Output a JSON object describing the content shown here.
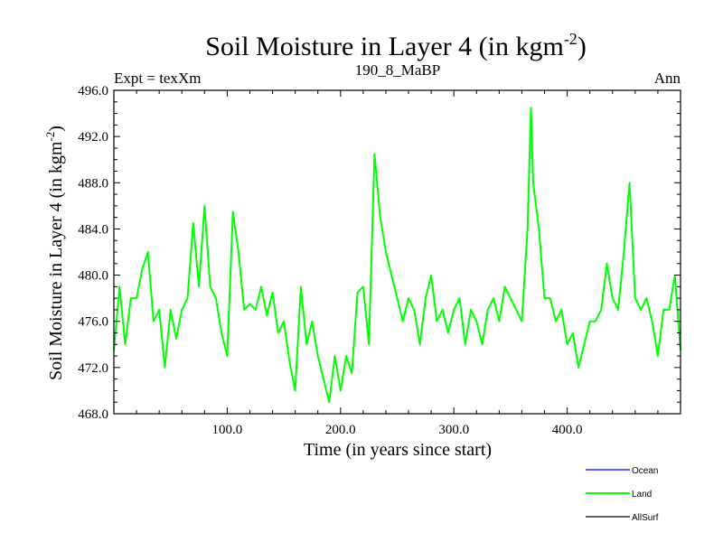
{
  "chart_data": {
    "type": "line",
    "title": "Soil Moisture in Layer 4 (in kgm",
    "title_sup": "-2",
    "title_close": ")",
    "subtitle_left": "Expt = texXm",
    "subtitle_center": "190_8_MaBP",
    "subtitle_right": "Ann",
    "xlabel": "Time (in years since start)",
    "ylabel": "Soil Moisture in Layer 4 (in kgm",
    "ylabel_sup": "-2",
    "ylabel_close": ")",
    "xlim": [
      0,
      500
    ],
    "ylim": [
      468,
      496
    ],
    "xticks": [
      100,
      200,
      300,
      400
    ],
    "xtick_labels": [
      "100.0",
      "200.0",
      "300.0",
      "400.0"
    ],
    "yticks": [
      468,
      472,
      476,
      480,
      484,
      488,
      492,
      496
    ],
    "ytick_labels": [
      "468.0",
      "472.0",
      "476.0",
      "480.0",
      "484.0",
      "488.0",
      "492.0",
      "496.0"
    ],
    "legend": [
      {
        "name": "Ocean",
        "color": "#0000ff"
      },
      {
        "name": "Land",
        "color": "#00ff00"
      },
      {
        "name": "AllSurf",
        "color": "#000000"
      }
    ],
    "series": [
      {
        "name": "Land",
        "color": "#00ff00",
        "x": [
          0,
          5,
          10,
          15,
          20,
          25,
          30,
          35,
          40,
          45,
          50,
          55,
          60,
          65,
          70,
          75,
          80,
          85,
          90,
          95,
          100,
          105,
          110,
          115,
          120,
          125,
          130,
          135,
          140,
          145,
          150,
          155,
          160,
          165,
          170,
          175,
          180,
          185,
          190,
          195,
          200,
          205,
          210,
          215,
          220,
          225,
          230,
          235,
          240,
          245,
          250,
          255,
          260,
          265,
          270,
          275,
          280,
          285,
          290,
          295,
          300,
          305,
          310,
          315,
          320,
          325,
          330,
          335,
          340,
          345,
          350,
          355,
          360,
          365,
          368,
          370,
          375,
          380,
          385,
          390,
          395,
          400,
          405,
          410,
          415,
          420,
          425,
          430,
          435,
          440,
          445,
          450,
          455,
          460,
          465,
          470,
          475,
          480,
          485,
          490,
          495,
          500
        ],
        "values": [
          473.5,
          479,
          474,
          478,
          478,
          480.5,
          482,
          476,
          477,
          472,
          477,
          474.5,
          477,
          478,
          484.5,
          479,
          486,
          479,
          478,
          475,
          473,
          485.5,
          482,
          477,
          477.5,
          477,
          479,
          476.5,
          478.5,
          475,
          476,
          472.5,
          470,
          479,
          474,
          476,
          473,
          471,
          469,
          473,
          470,
          473,
          471.5,
          478.5,
          479,
          474,
          490.5,
          485,
          482,
          480,
          478,
          476,
          478,
          477,
          474,
          478,
          480,
          476,
          477,
          475,
          477,
          478,
          474,
          477,
          476,
          474,
          477,
          478,
          476,
          479,
          478,
          477,
          476,
          484,
          494.5,
          488,
          484,
          478,
          478,
          476,
          477,
          474,
          475,
          472,
          474,
          476,
          476,
          477,
          481,
          478,
          477,
          482,
          488,
          478,
          477,
          478,
          476,
          473,
          477,
          477,
          480,
          473.5
        ]
      }
    ]
  }
}
